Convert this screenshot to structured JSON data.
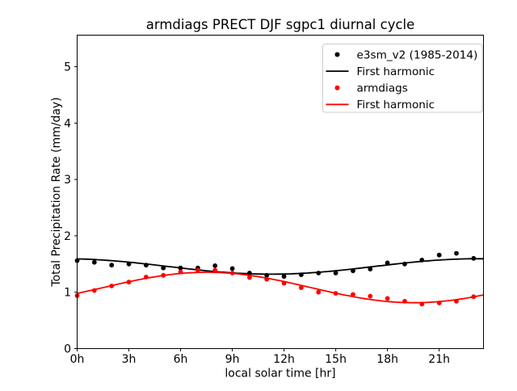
{
  "figure": {
    "title": "armdiags PRECT DJF sgpc1 diurnal cycle"
  },
  "chart_data": {
    "type": "scatter",
    "title": "armdiags PRECT DJF sgpc1 diurnal cycle",
    "xlabel": "local solar time [hr]",
    "ylabel": "Total Precipitation Rate (mm/day)",
    "grid": false,
    "legend_position": "upper right",
    "xlim": [
      0,
      23.57
    ],
    "ylim": [
      0,
      5.56
    ],
    "x_tick_hours": [
      0,
      3,
      6,
      9,
      12,
      15,
      18,
      21
    ],
    "x_tick_labels": [
      "0h",
      "3h",
      "6h",
      "9h",
      "12h",
      "15h",
      "18h",
      "21h"
    ],
    "y_tick_values": [
      0,
      1,
      2,
      3,
      4,
      5
    ],
    "y_tick_labels": [
      "0",
      "1",
      "2",
      "3",
      "4",
      "5"
    ],
    "hours": [
      0,
      1,
      2,
      3,
      4,
      5,
      6,
      7,
      8,
      9,
      10,
      11,
      12,
      13,
      14,
      15,
      16,
      17,
      18,
      19,
      20,
      21,
      22,
      23
    ],
    "series": [
      {
        "name": "e3sm_v2 (1985-2014)",
        "style": "scatter",
        "color": "#000000",
        "values": [
          1.56,
          1.53,
          1.48,
          1.5,
          1.48,
          1.43,
          1.43,
          1.43,
          1.47,
          1.42,
          1.34,
          1.3,
          1.28,
          1.31,
          1.34,
          1.34,
          1.38,
          1.41,
          1.52,
          1.5,
          1.57,
          1.66,
          1.69,
          1.6
        ]
      },
      {
        "name": "First harmonic",
        "style": "line",
        "color": "#000000",
        "harmonic": {
          "mean": 1.457,
          "amplitude": 0.137,
          "peak_hour": 23.25
        }
      },
      {
        "name": "armdiags",
        "style": "scatter",
        "color": "#ff0000",
        "values": [
          0.94,
          1.03,
          1.11,
          1.18,
          1.27,
          1.3,
          1.36,
          1.39,
          1.39,
          1.34,
          1.26,
          1.23,
          1.16,
          1.08,
          1.0,
          0.98,
          0.96,
          0.93,
          0.89,
          0.84,
          0.79,
          0.81,
          0.84,
          0.92
        ]
      },
      {
        "name": "First harmonic",
        "style": "line",
        "color": "#ff0000",
        "harmonic": {
          "mean": 1.084,
          "amplitude": 0.27,
          "peak_hour": 7.53
        }
      }
    ],
    "legend_border_color": "#cccccc",
    "axis_color": "#000000",
    "background_color": "#ffffff"
  }
}
